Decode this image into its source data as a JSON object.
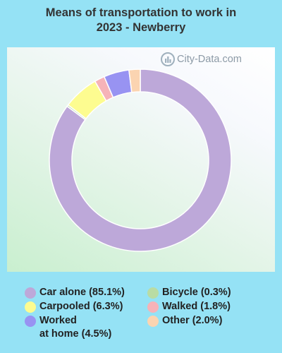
{
  "title_lines": [
    "Means of transportation to work in",
    "2023 - Newberry"
  ],
  "watermark": "City-Data.com",
  "chart_data": {
    "type": "donut",
    "title": "Means of transportation to work in 2023 - Newberry",
    "series": [
      {
        "name": "Car alone",
        "value": 85.1,
        "color": "#bda8d9"
      },
      {
        "name": "Bicycle",
        "value": 0.3,
        "color": "#b9dca4"
      },
      {
        "name": "Carpooled",
        "value": 6.3,
        "color": "#fdfc90"
      },
      {
        "name": "Walked",
        "value": 1.8,
        "color": "#f6b3b8"
      },
      {
        "name": "Worked at home",
        "value": 4.5,
        "color": "#9893f2"
      },
      {
        "name": "Other",
        "value": 2.0,
        "color": "#fbd4b1"
      }
    ],
    "legend": [
      {
        "label": "Car alone (85.1%)",
        "color": "#bda8d9"
      },
      {
        "label": "Carpooled (6.3%)",
        "color": "#fdfc90"
      },
      {
        "label": "Worked\nat home (4.5%)",
        "color": "#9893f2"
      },
      {
        "label": "Bicycle (0.3%)",
        "color": "#b9dca4"
      },
      {
        "label": "Walked (1.8%)",
        "color": "#f6b3b8"
      },
      {
        "label": "Other (2.0%)",
        "color": "#fbd4b1"
      }
    ]
  }
}
